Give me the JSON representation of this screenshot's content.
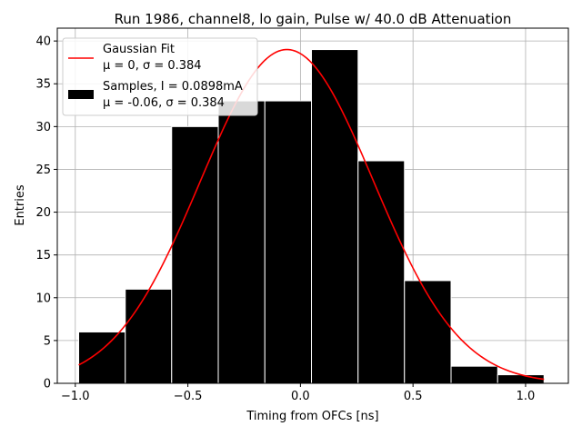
{
  "chart_data": {
    "type": "bar",
    "title": "Run 1986, channel8, lo gain, Pulse w/ 40.0 dB Attenuation",
    "xlabel": "Timing from OFCs [ns]",
    "ylabel": "Entries",
    "xlim": [
      -1.08,
      1.19
    ],
    "ylim": [
      0,
      41.5
    ],
    "xticks": [
      -1.0,
      -0.5,
      0.0,
      0.5,
      1.0
    ],
    "xtick_labels": [
      "−1.0",
      "−0.5",
      "0.0",
      "0.5",
      "1.0"
    ],
    "yticks": [
      0,
      5,
      10,
      15,
      20,
      25,
      30,
      35,
      40
    ],
    "ytick_labels": [
      "0",
      "5",
      "10",
      "15",
      "20",
      "25",
      "30",
      "35",
      "40"
    ],
    "grid": true,
    "legend_position": "upper-left",
    "histogram": {
      "name": "Samples, I = 0.0898mA",
      "name_line2": "μ = -0.06, σ = 0.384",
      "bin_edges": [
        -0.985,
        -0.778,
        -0.572,
        -0.365,
        -0.158,
        0.049,
        0.256,
        0.462,
        0.669,
        0.876,
        1.082
      ],
      "values": [
        6,
        11,
        30,
        33,
        33,
        39,
        26,
        12,
        2,
        1
      ],
      "color": "#000000",
      "edge_color": "#ffffff"
    },
    "fit": {
      "name": "Gaussian Fit",
      "name_line2": "μ = 0, σ = 0.384",
      "mu": -0.06,
      "sigma": 0.384,
      "amplitude": 39.0,
      "x_range": [
        -0.985,
        1.082
      ],
      "color": "#ff0000"
    }
  }
}
